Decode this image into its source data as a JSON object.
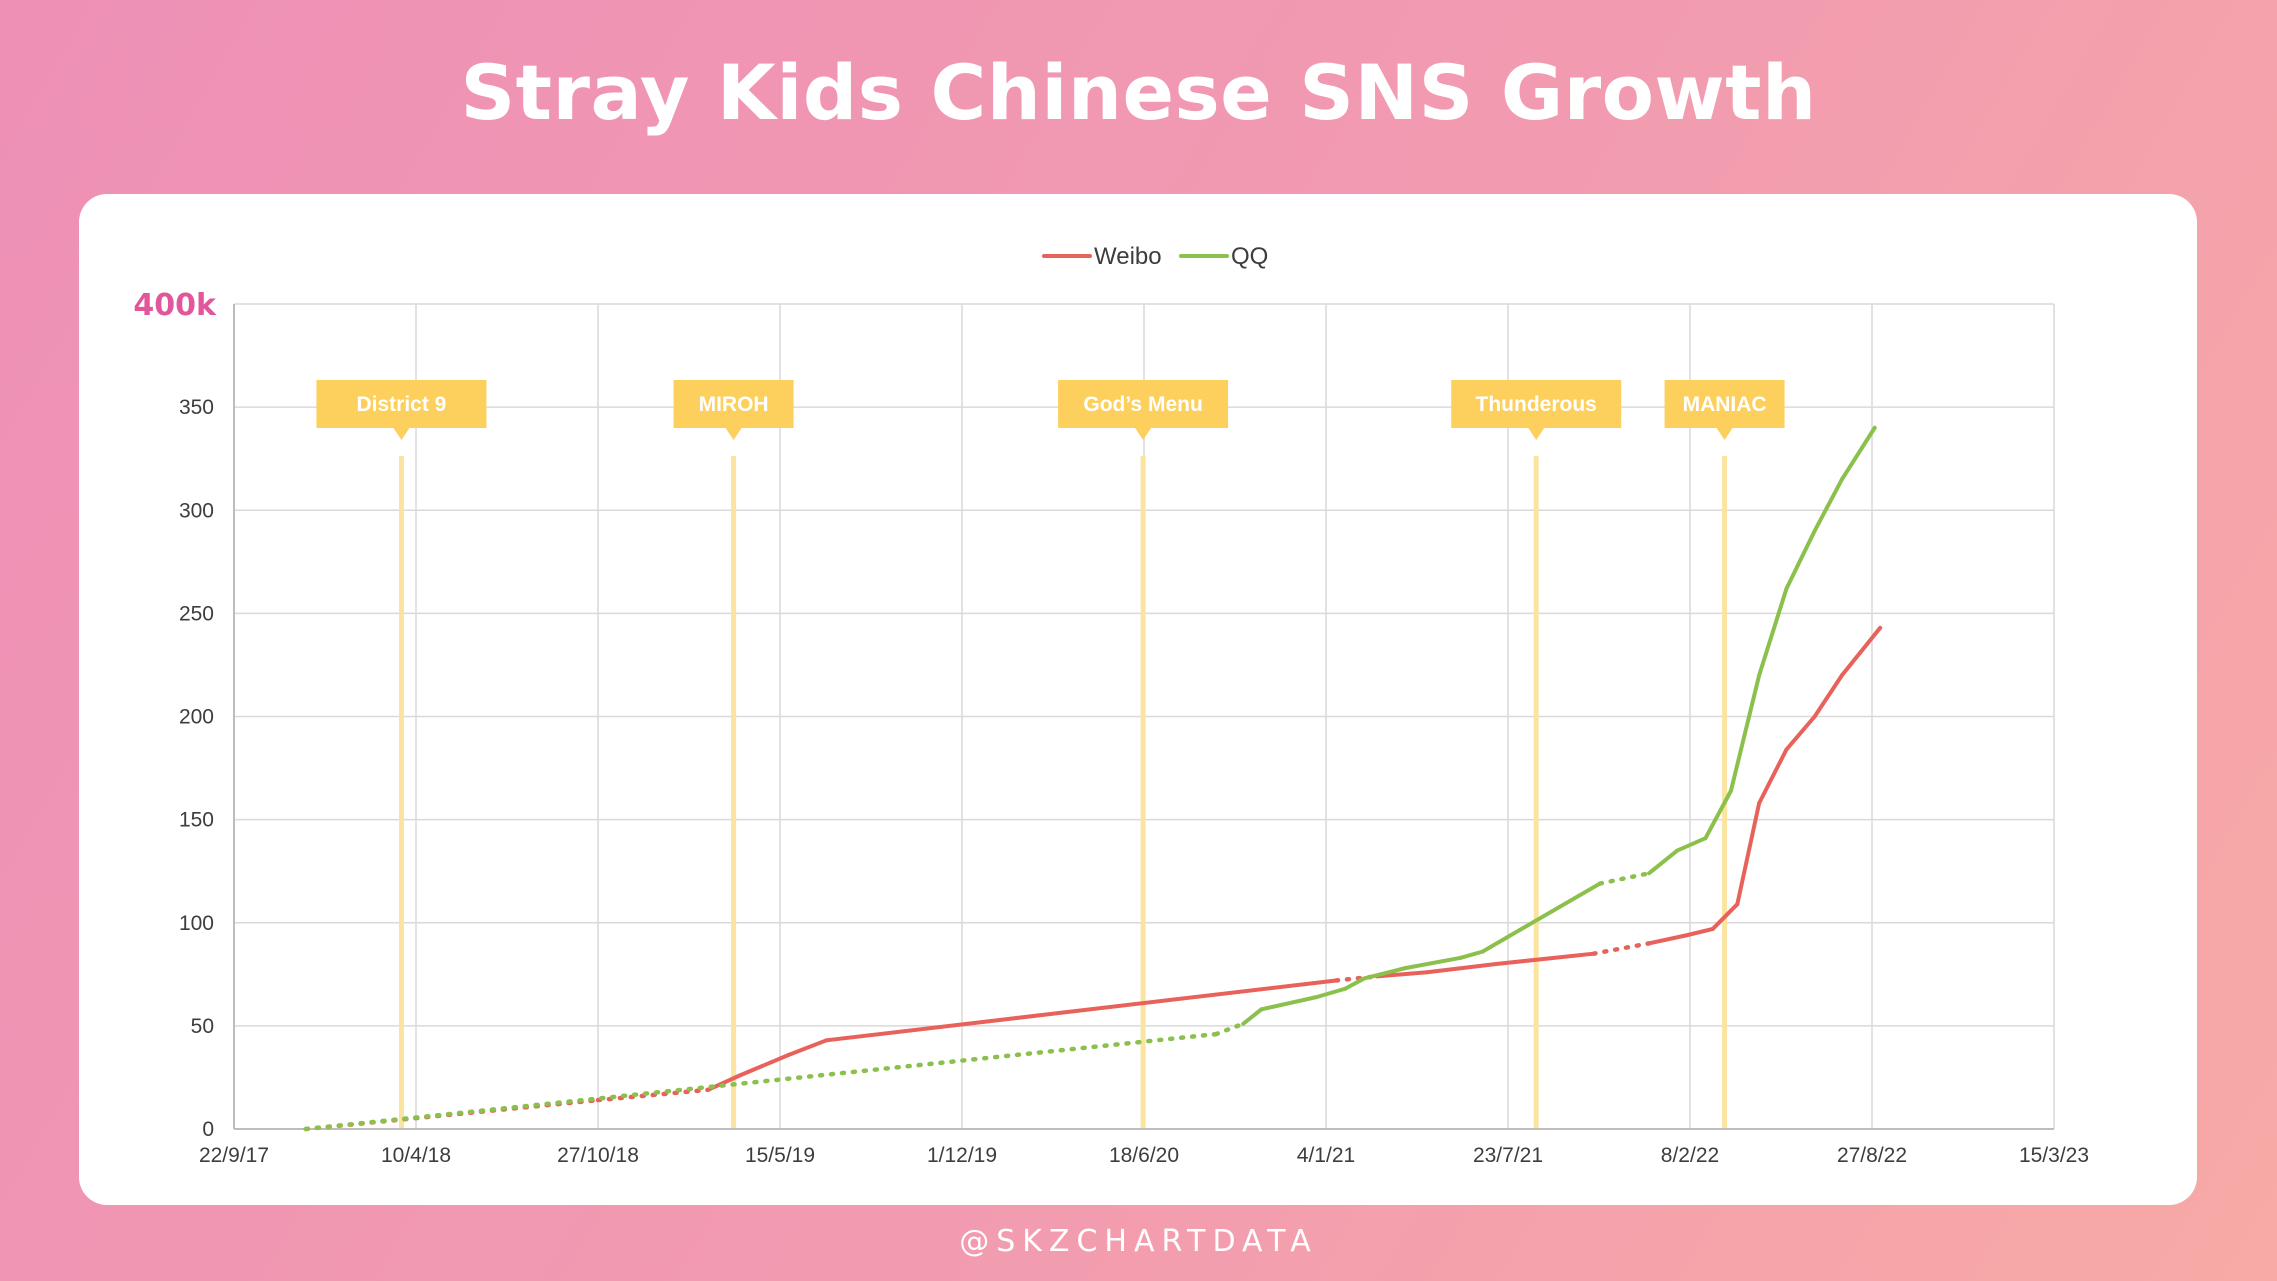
{
  "title": "Stray Kids Chinese SNS Growth",
  "footer": "@SKZCHARTDATA",
  "colors": {
    "weibo": "#e8615a",
    "qq": "#8cc04d",
    "annotation_fill": "#fdd05e",
    "annotation_line": "#fbe3a0",
    "ymax_label": "#e2579a"
  },
  "chart_data": {
    "type": "line",
    "title": "",
    "xlabel": "",
    "ylabel": "",
    "ylim": [
      0,
      400
    ],
    "yticks": [
      0,
      50,
      100,
      150,
      200,
      250,
      300,
      350
    ],
    "ymax_label": "400k",
    "x_axis": {
      "type": "date",
      "min": "2017-09-22",
      "max": "2023-03-15",
      "ticks": [
        {
          "date": "2017-09-22",
          "label": "22/9/17"
        },
        {
          "date": "2018-04-10",
          "label": "10/4/18"
        },
        {
          "date": "2018-10-27",
          "label": "27/10/18"
        },
        {
          "date": "2019-05-15",
          "label": "15/5/19"
        },
        {
          "date": "2019-12-01",
          "label": "1/12/19"
        },
        {
          "date": "2020-06-18",
          "label": "18/6/20"
        },
        {
          "date": "2021-01-04",
          "label": "4/1/21"
        },
        {
          "date": "2021-07-23",
          "label": "23/7/21"
        },
        {
          "date": "2022-02-08",
          "label": "8/2/22"
        },
        {
          "date": "2022-08-27",
          "label": "27/8/22"
        },
        {
          "date": "2023-03-15",
          "label": "15/3/23"
        }
      ]
    },
    "grid": true,
    "legend": "top",
    "series": [
      {
        "name": "Weibo",
        "color": "#e8615a",
        "points": [
          {
            "x": "2017-12-10",
            "y": 0,
            "estimated": true
          },
          {
            "x": "2018-10-27",
            "y": 14,
            "estimated": true
          },
          {
            "x": "2019-02-25",
            "y": 19,
            "estimated": false
          },
          {
            "x": "2019-04-01",
            "y": 26,
            "estimated": false
          },
          {
            "x": "2019-05-25",
            "y": 36,
            "estimated": false
          },
          {
            "x": "2019-07-05",
            "y": 43,
            "estimated": false
          },
          {
            "x": "2021-01-15",
            "y": 72,
            "estimated": true
          },
          {
            "x": "2021-03-01",
            "y": 74,
            "estimated": false
          },
          {
            "x": "2021-04-25",
            "y": 76,
            "estimated": false
          },
          {
            "x": "2021-07-10",
            "y": 80,
            "estimated": false
          },
          {
            "x": "2021-10-25",
            "y": 85,
            "estimated": true
          },
          {
            "x": "2021-12-25",
            "y": 90,
            "estimated": false
          },
          {
            "x": "2022-02-05",
            "y": 94,
            "estimated": false
          },
          {
            "x": "2022-03-05",
            "y": 97,
            "estimated": false
          },
          {
            "x": "2022-04-01",
            "y": 109,
            "estimated": false
          },
          {
            "x": "2022-04-25",
            "y": 158,
            "estimated": false
          },
          {
            "x": "2022-05-25",
            "y": 184,
            "estimated": false
          },
          {
            "x": "2022-06-25",
            "y": 200,
            "estimated": false
          },
          {
            "x": "2022-07-25",
            "y": 220,
            "estimated": false
          },
          {
            "x": "2022-09-05",
            "y": 243,
            "estimated": false
          }
        ]
      },
      {
        "name": "QQ",
        "color": "#8cc04d",
        "points": [
          {
            "x": "2017-12-10",
            "y": 0,
            "estimated": true
          },
          {
            "x": "2020-09-05",
            "y": 46,
            "estimated": true
          },
          {
            "x": "2020-10-05",
            "y": 51,
            "estimated": false
          },
          {
            "x": "2020-10-25",
            "y": 58,
            "estimated": false
          },
          {
            "x": "2020-12-25",
            "y": 64,
            "estimated": false
          },
          {
            "x": "2021-01-25",
            "y": 68,
            "estimated": false
          },
          {
            "x": "2021-02-15",
            "y": 73,
            "estimated": false
          },
          {
            "x": "2021-04-01",
            "y": 78,
            "estimated": false
          },
          {
            "x": "2021-06-01",
            "y": 83,
            "estimated": false
          },
          {
            "x": "2021-06-25",
            "y": 86,
            "estimated": false
          },
          {
            "x": "2021-11-01",
            "y": 119,
            "estimated": true
          },
          {
            "x": "2021-12-25",
            "y": 124,
            "estimated": false
          },
          {
            "x": "2022-01-25",
            "y": 135,
            "estimated": false
          },
          {
            "x": "2022-02-25",
            "y": 141,
            "estimated": false
          },
          {
            "x": "2022-03-25",
            "y": 164,
            "estimated": false
          },
          {
            "x": "2022-04-25",
            "y": 220,
            "estimated": false
          },
          {
            "x": "2022-05-25",
            "y": 262,
            "estimated": false
          },
          {
            "x": "2022-06-25",
            "y": 290,
            "estimated": false
          },
          {
            "x": "2022-07-25",
            "y": 315,
            "estimated": false
          },
          {
            "x": "2022-08-30",
            "y": 340,
            "estimated": false
          }
        ]
      }
    ],
    "annotations": [
      {
        "label": "District 9",
        "date": "2018-03-25"
      },
      {
        "label": "MIROH",
        "date": "2019-03-25"
      },
      {
        "label": "God’s Menu",
        "date": "2020-06-17"
      },
      {
        "label": "Thunderous",
        "date": "2021-08-23"
      },
      {
        "label": "MANIAC",
        "date": "2022-03-18"
      }
    ]
  }
}
